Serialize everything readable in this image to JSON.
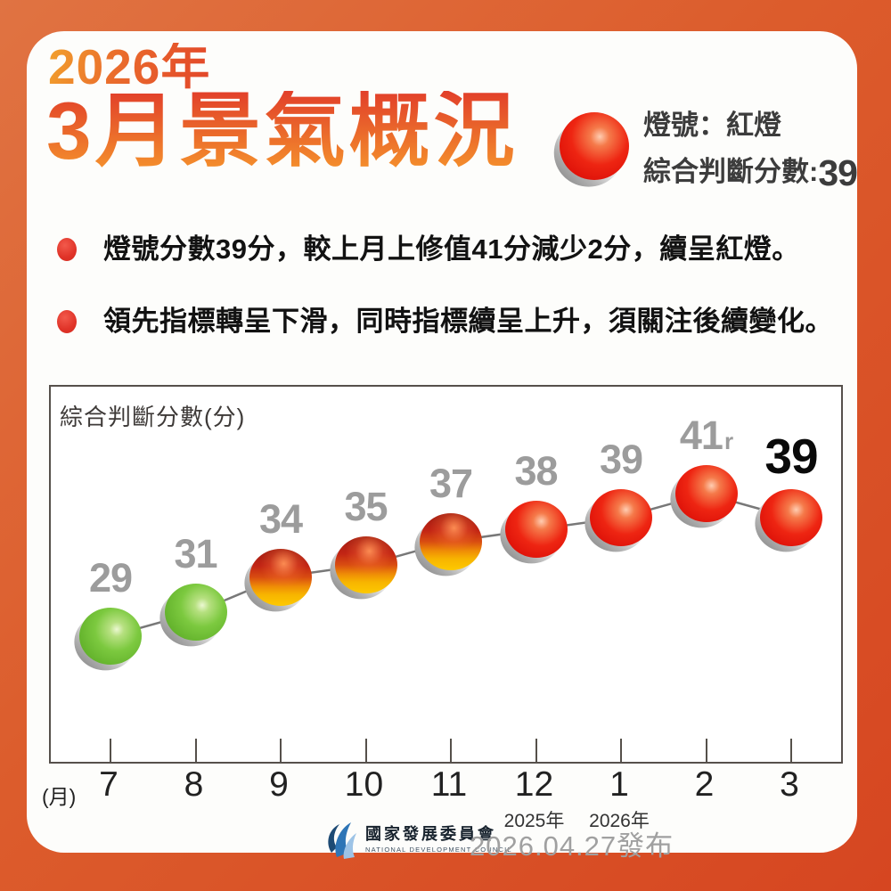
{
  "header": {
    "year": "2026年",
    "title": "3月景氣概況",
    "signal_label": "燈號：紅燈",
    "score_label": "綜合判斷分數:",
    "score_value": "39",
    "signal_light": "red"
  },
  "bullets": [
    "燈號分數39分，較上月上修值41分減少2分，續呈紅燈。",
    "領先指標轉呈下滑，同時指標續呈上升，須關注後續變化。"
  ],
  "chart_data": {
    "type": "line",
    "title": "綜合判斷分數",
    "ylabel": "綜合判斷分數(分)",
    "xlabel": "(月)",
    "categories": [
      "7",
      "8",
      "9",
      "10",
      "11",
      "12",
      "1",
      "2",
      "3"
    ],
    "series": [
      {
        "name": "綜合判斷分數",
        "values": [
          29,
          31,
          34,
          35,
          37,
          38,
          39,
          41,
          39
        ]
      }
    ],
    "point_labels": [
      "29",
      "31",
      "34",
      "35",
      "37",
      "38",
      "39",
      "41r",
      "39"
    ],
    "point_signals": [
      "green",
      "green",
      "yellow-red",
      "yellow-red",
      "yellow-red",
      "red",
      "red",
      "red",
      "red"
    ],
    "revised_index": 7,
    "revised_suffix": "r",
    "current_index": 8,
    "year_markers": [
      {
        "index": 5,
        "label": "2025年"
      },
      {
        "index": 6,
        "label": "2026年"
      }
    ],
    "ylim": [
      27,
      44
    ],
    "grid": false,
    "legend_position": "none"
  },
  "colors": {
    "green_light": "#6ec233",
    "yellow_red_light_top": "#b92017",
    "yellow_red_light_bottom": "#f8c301",
    "red_light": "#e8150c",
    "title_orange_top": "#e23f2a",
    "title_orange_bottom": "#f5922c",
    "background_orange": "#dc5c2c",
    "label_gray": "#9c9c9c"
  },
  "footer": {
    "org_zh": "國家發展委員會",
    "org_en": "NATIONAL DEVELOPMENT COUNCIL",
    "date": "2026.04.27發布"
  }
}
